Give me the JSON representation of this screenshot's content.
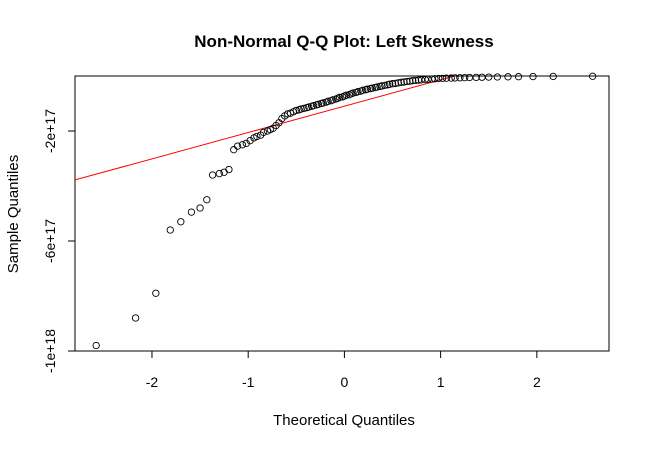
{
  "chart_data": {
    "type": "scatter",
    "title": "Non-Normal Q-Q Plot: Left Skewness",
    "xlabel": "Theoretical Quantiles",
    "ylabel": "Sample Quantiles",
    "xlim": [
      -2.8,
      2.75
    ],
    "ylim": [
      -1e+18,
      0
    ],
    "x_ticks": [
      -2,
      -1,
      0,
      1,
      2
    ],
    "x_tick_labels": [
      "-2",
      "-1",
      "0",
      "1",
      "2"
    ],
    "y_ticks": [
      -2e+17,
      -6e+17,
      -1e+18
    ],
    "y_tick_labels": [
      "-2e+17",
      "-6e+17",
      "-1e+18"
    ],
    "grid": false,
    "point_color": "#000000",
    "line_color": "#ff0000",
    "qq_line": {
      "x": [
        -2.8,
        1.51
      ],
      "y": [
        -3.78e+17,
        3.5e+16
      ]
    },
    "points": {
      "x": [
        -2.58,
        -2.17,
        -1.96,
        -1.81,
        -1.7,
        -1.59,
        -1.5,
        -1.43,
        -1.37,
        -1.3,
        -1.25,
        -1.2,
        -1.15,
        -1.11,
        -1.06,
        -1.02,
        -0.98,
        -0.94,
        -0.91,
        -0.87,
        -0.84,
        -0.8,
        -0.77,
        -0.74,
        -0.71,
        -0.68,
        -0.65,
        -0.62,
        -0.59,
        -0.56,
        -0.53,
        -0.5,
        -0.47,
        -0.45,
        -0.42,
        -0.39,
        -0.37,
        -0.34,
        -0.32,
        -0.29,
        -0.27,
        -0.24,
        -0.22,
        -0.19,
        -0.17,
        -0.14,
        -0.12,
        -0.09,
        -0.07,
        -0.05,
        -0.02,
        0.0,
        0.02,
        0.05,
        0.07,
        0.09,
        0.12,
        0.14,
        0.17,
        0.19,
        0.22,
        0.24,
        0.27,
        0.29,
        0.32,
        0.34,
        0.37,
        0.39,
        0.42,
        0.45,
        0.47,
        0.5,
        0.53,
        0.56,
        0.59,
        0.62,
        0.65,
        0.68,
        0.71,
        0.74,
        0.77,
        0.8,
        0.84,
        0.87,
        0.91,
        0.94,
        0.98,
        1.02,
        1.06,
        1.11,
        1.15,
        1.2,
        1.25,
        1.3,
        1.37,
        1.43,
        1.5,
        1.59,
        1.7,
        1.81,
        1.96,
        2.17,
        2.58
      ],
      "y": [
        -9.8e+17,
        -8.8e+17,
        -7.9e+17,
        -5.6e+17,
        -5.3e+17,
        -4.95e+17,
        -4.8e+17,
        -4.5e+17,
        -3.6e+17,
        -3.55e+17,
        -3.5e+17,
        -3.4e+17,
        -2.68e+17,
        -2.55e+17,
        -2.5e+17,
        -2.45e+17,
        -2.35e+17,
        -2.25e+17,
        -2.2e+17,
        -2.15e+17,
        -2.05e+17,
        -2e+17,
        -1.95e+17,
        -1.9e+17,
        -1.8e+17,
        -1.7e+17,
        -1.55e+17,
        -1.45e+17,
        -1.38e+17,
        -1.35e+17,
        -1.3e+17,
        -1.25e+17,
        -1.23e+17,
        -1.2e+17,
        -1.18e+17,
        -1.15e+17,
        -1.13e+17,
        -1.1e+17,
        -1.08e+17,
        -1.05e+17,
        -1.03e+17,
        -1e+17,
        -9.8e+16,
        -9.5e+16,
        -9.2e+16,
        -9e+16,
        -8.7e+16,
        -8.4e+16,
        -8.1e+16,
        -7.8e+16,
        -7.6e+16,
        -7.3e+16,
        -7e+16,
        -6.8e+16,
        -6.5e+16,
        -6.2e+16,
        -6e+16,
        -5.7e+16,
        -5.5e+16,
        -5.2e+16,
        -5e+16,
        -4.8e+16,
        -4.6e+16,
        -4.4e+16,
        -4.2e+16,
        -4e+16,
        -3.8e+16,
        -3.6e+16,
        -3.4e+16,
        -3.2e+16,
        -3e+16,
        -2.8e+16,
        -2.7e+16,
        -2.5e+16,
        -2.3e+16,
        -2.2e+16,
        -2e+16,
        -1.9e+16,
        -1.7e+16,
        -1.6e+16,
        -1.5e+16,
        -1.4e+16,
        -1.3e+16,
        -1.2e+16,
        -1.1e+16,
        -1e+16,
        -9000000000000000.0,
        -8500000000000000.0,
        -8000000000000000.0,
        -7500000000000000.0,
        -7000000000000000.0,
        -6500000000000000.0,
        -6000000000000000.0,
        -5500000000000000.0,
        -5000000000000000.0,
        -4500000000000000.0,
        -4000000000000000.0,
        -3500000000000000.0,
        -3000000000000000.0,
        -2500000000000000.0,
        -2000000000000000.0,
        -1500000000000000.0,
        -1000000000000000.0
      ]
    }
  }
}
